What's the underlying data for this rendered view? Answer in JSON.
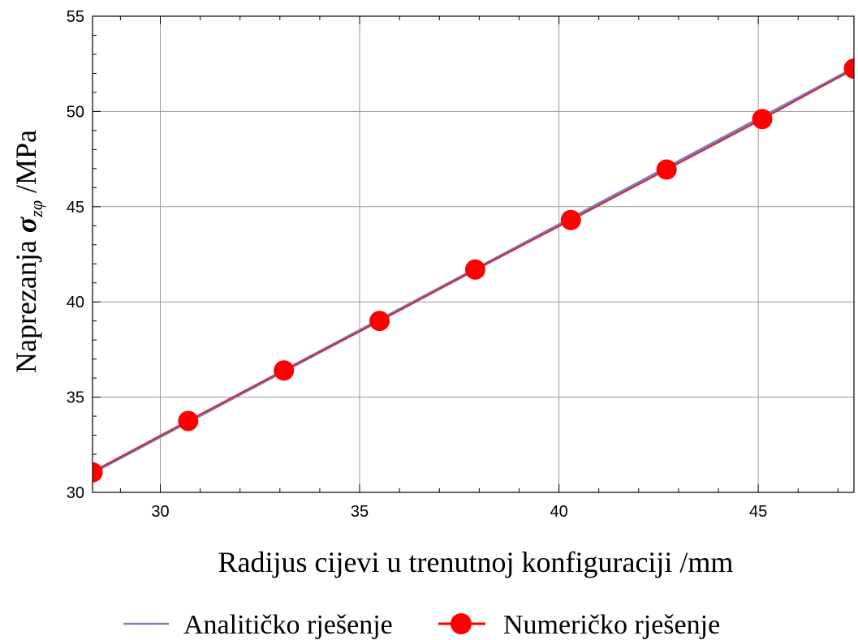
{
  "chart_data": {
    "type": "line",
    "xlabel": "Radijus cijevi u trenutnoj konfiguraciji /mm",
    "ylabel_prefix": "Naprezanja ",
    "ylabel_symbol": "σ",
    "ylabel_subscript": "zφ",
    "ylabel_suffix": " /MPa",
    "xlim": [
      28.3,
      47.4
    ],
    "ylim": [
      30,
      55
    ],
    "xticks": [
      30,
      35,
      40,
      45
    ],
    "yticks": [
      30,
      35,
      40,
      45,
      50,
      55
    ],
    "grid": true,
    "legend_position": "bottom",
    "series": [
      {
        "name": "Analitičko rješenje",
        "kind": "line",
        "color": "#8080b8",
        "x": [
          28.3,
          47.4
        ],
        "y": [
          31.05,
          52.25
        ]
      },
      {
        "name": "Numeričko rješenje",
        "kind": "line-markers",
        "color": "#ff0000",
        "line_color": "#c0304a",
        "x": [
          28.3,
          30.7,
          33.1,
          35.5,
          37.9,
          40.3,
          42.7,
          45.1,
          47.4
        ],
        "y": [
          31.05,
          33.75,
          36.4,
          39.0,
          41.7,
          44.3,
          46.95,
          49.6,
          52.25
        ]
      }
    ]
  }
}
